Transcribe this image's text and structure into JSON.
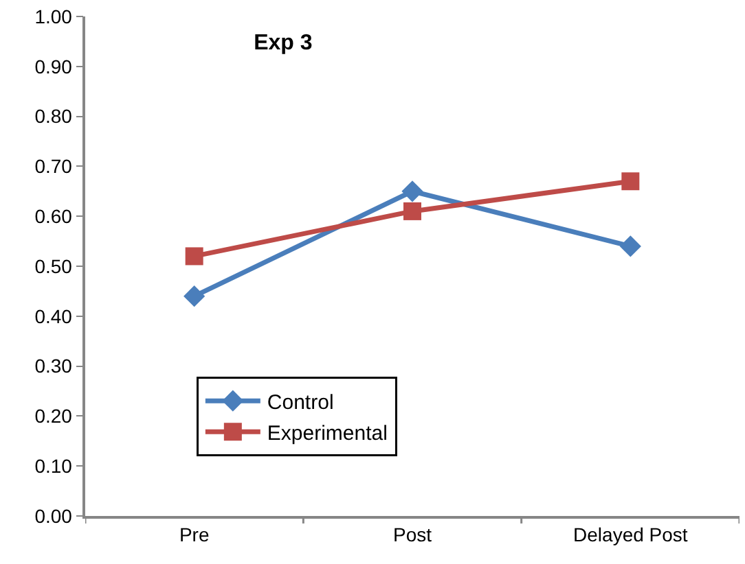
{
  "chart_data": {
    "type": "line",
    "title": "Exp 3",
    "categories": [
      "Pre",
      "Post",
      "Delayed Post"
    ],
    "series": [
      {
        "name": "Control",
        "color": "#4a7ebb",
        "marker": "diamond",
        "values": [
          0.44,
          0.65,
          0.54
        ]
      },
      {
        "name": "Experimental",
        "color": "#be4b48",
        "marker": "square",
        "values": [
          0.52,
          0.61,
          0.67
        ]
      }
    ],
    "ylim": [
      0,
      1
    ],
    "yticks": [
      {
        "value": 0,
        "label": "0.00"
      },
      {
        "value": 0.1,
        "label": "0.10"
      },
      {
        "value": 0.2,
        "label": "0.20"
      },
      {
        "value": 0.3,
        "label": "0.30"
      },
      {
        "value": 0.4,
        "label": "0.40"
      },
      {
        "value": 0.5,
        "label": "0.50"
      },
      {
        "value": 0.6,
        "label": "0.60"
      },
      {
        "value": 0.7,
        "label": "0.70"
      },
      {
        "value": 0.8,
        "label": "0.80"
      },
      {
        "value": 0.9,
        "label": "0.90"
      },
      {
        "value": 1,
        "label": "1.00"
      }
    ],
    "legend": "bottom left",
    "line_style": "solid"
  }
}
